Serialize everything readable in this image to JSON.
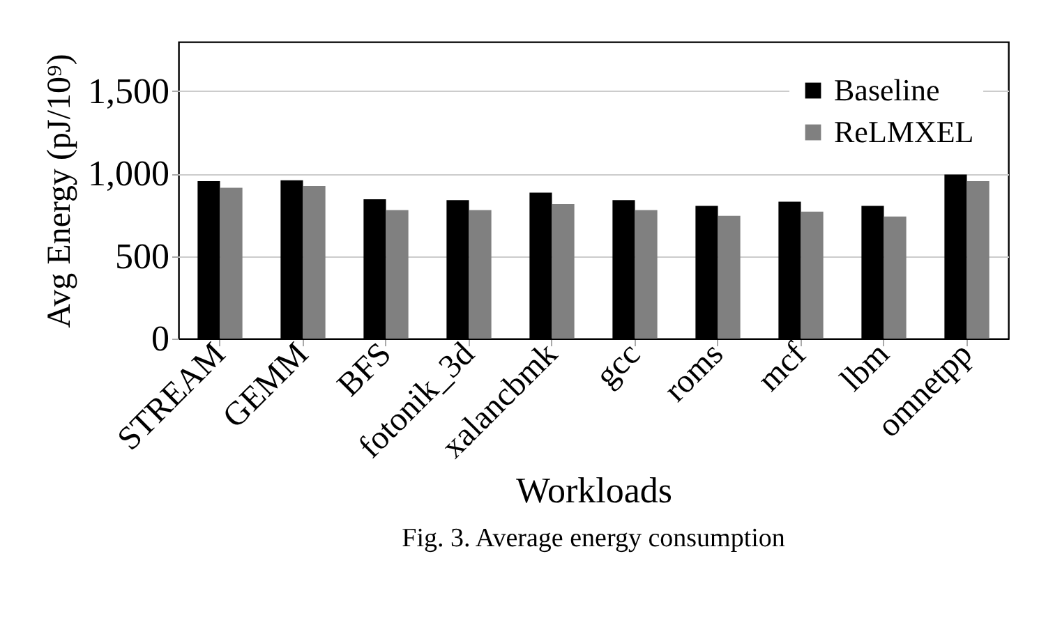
{
  "chart_data": {
    "type": "bar",
    "xlabel": "Workloads",
    "ylabel": "Avg Energy (pJ/10⁹)",
    "annotations": [
      "Fig. 3.  Average energy consumption"
    ],
    "categories": [
      "STREAM",
      "GEMM",
      "BFS",
      "fotonik_3d",
      "xalancbmk",
      "gcc",
      "roms",
      "mcf",
      "lbm",
      "omnetpp"
    ],
    "series": [
      {
        "name": "Baseline",
        "color": "#000000",
        "values": [
          955,
          960,
          845,
          840,
          885,
          840,
          805,
          830,
          805,
          995
        ]
      },
      {
        "name": "ReLMXEL",
        "color": "#808080",
        "values": [
          915,
          925,
          780,
          780,
          815,
          780,
          745,
          770,
          740,
          955
        ]
      }
    ],
    "ylim": [
      0,
      1800
    ],
    "yticks": [
      0,
      500,
      {
        "value": 1000,
        "label": "1,000"
      },
      {
        "value": 1500,
        "label": "1,500"
      }
    ],
    "grid": "y",
    "legend": "top right"
  }
}
